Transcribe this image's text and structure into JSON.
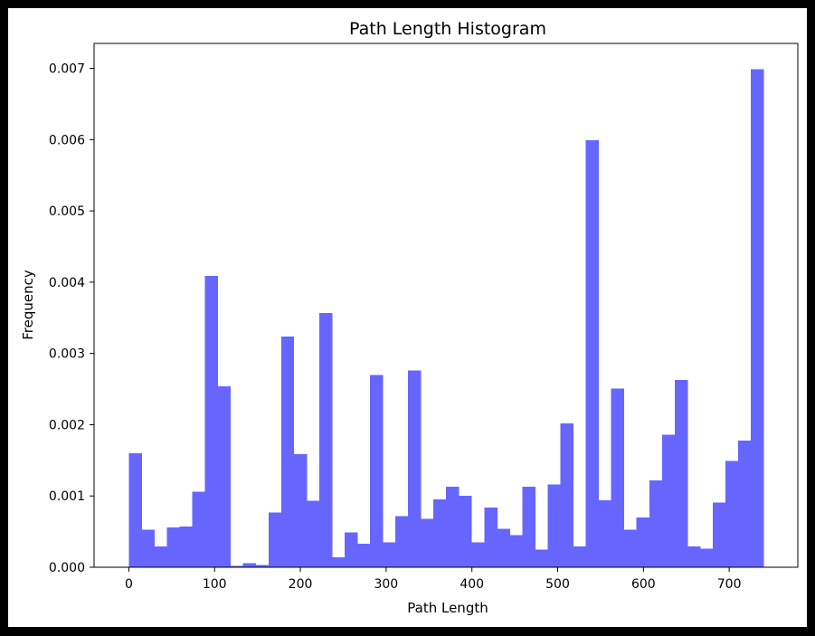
{
  "chart_data": {
    "type": "bar",
    "title": "Path Length Histogram",
    "xlabel": "Path Length",
    "ylabel": "Frequency",
    "xlim": [
      -40.5,
      780
    ],
    "ylim": [
      0,
      0.00735
    ],
    "xticks": [
      0,
      100,
      200,
      300,
      400,
      500,
      600,
      700
    ],
    "yticks": [
      0.0,
      0.001,
      0.002,
      0.003,
      0.004,
      0.005,
      0.006,
      0.007
    ],
    "ytick_labels": [
      "0.000",
      "0.001",
      "0.002",
      "0.003",
      "0.004",
      "0.005",
      "0.006",
      "0.007"
    ],
    "bins": {
      "start": 0,
      "width": 14.8,
      "count": 50
    },
    "values": [
      0.0016,
      0.00053,
      0.00029,
      0.00056,
      0.00057,
      0.00106,
      0.00409,
      0.00254,
      2e-05,
      6e-05,
      3e-05,
      0.00077,
      0.00324,
      0.00159,
      0.00093,
      0.00357,
      0.00014,
      0.00049,
      0.00033,
      0.0027,
      0.00035,
      0.00072,
      0.00276,
      0.00068,
      0.00095,
      0.00113,
      0.001,
      0.00035,
      0.00084,
      0.00054,
      0.00045,
      0.00113,
      0.00025,
      0.00116,
      0.00202,
      0.00029,
      0.00599,
      0.00094,
      0.00251,
      0.00053,
      0.0007,
      0.00122,
      0.00186,
      0.00263,
      0.00029,
      0.00026,
      0.00091,
      0.00149,
      0.00178,
      0.00699
    ],
    "color": "#6666ff",
    "grid": false,
    "legend": false
  }
}
